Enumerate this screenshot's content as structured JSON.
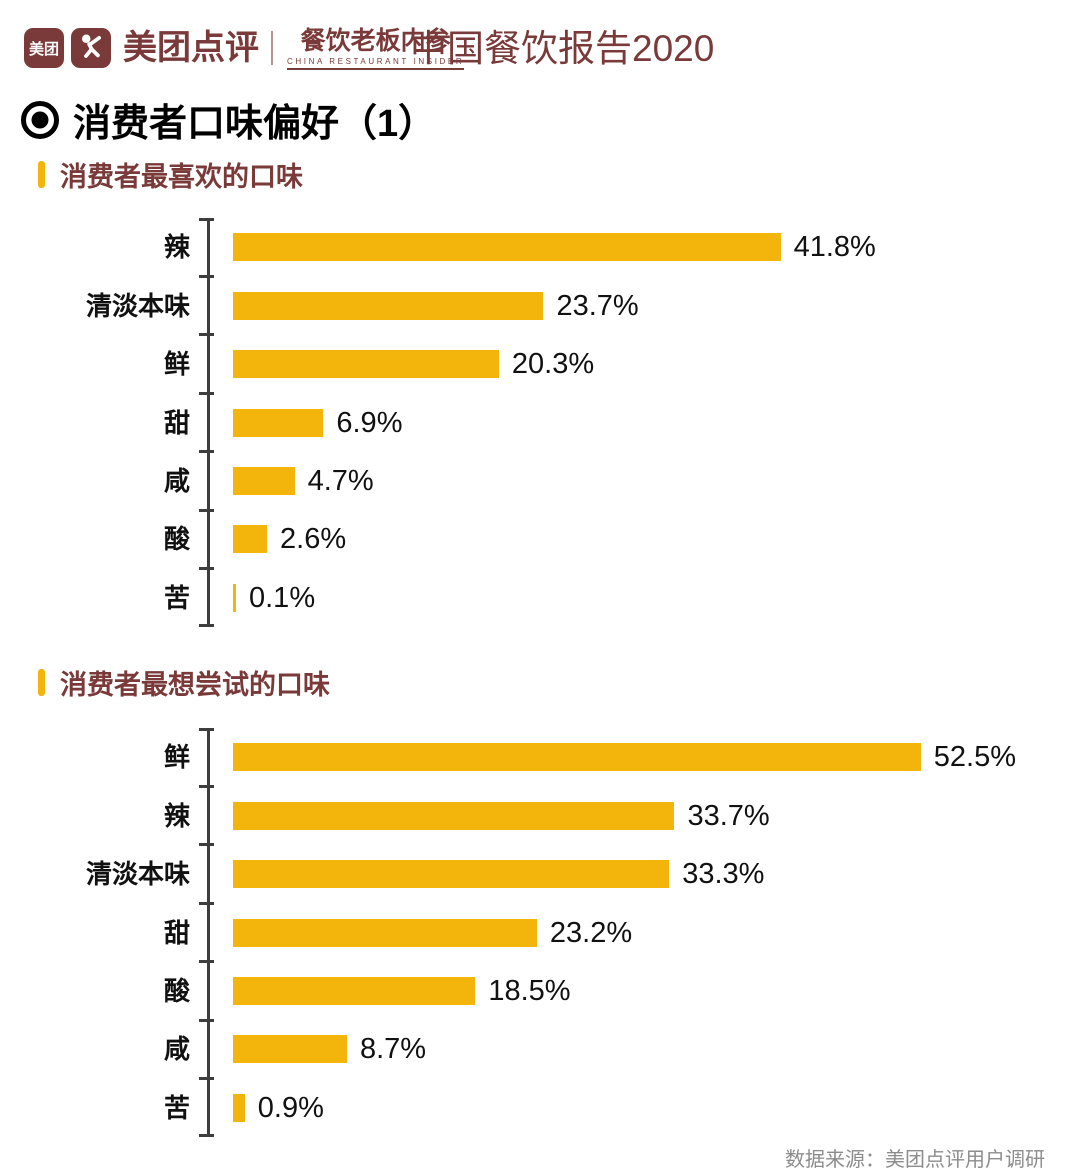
{
  "header": {
    "meituan_badge_label": "美团",
    "brand_name": "美团点评",
    "insider_title": "餐饮老板内参",
    "insider_subtitle": "CHINA RESTAURANT INSIDER",
    "report_title": "中国餐饮报告2020"
  },
  "page_title": "消费者口味偏好（1）",
  "chart_data": [
    {
      "type": "bar",
      "orientation": "horizontal",
      "title": "消费者最喜欢的口味",
      "categories": [
        "辣",
        "清淡本味",
        "鲜",
        "甜",
        "咸",
        "酸",
        "苦"
      ],
      "values": [
        41.8,
        23.7,
        20.3,
        6.9,
        4.7,
        2.6,
        0.1
      ],
      "value_labels": [
        "41.8%",
        "23.7%",
        "20.3%",
        "6.9%",
        "4.7%",
        "2.6%",
        "0.1%"
      ],
      "xlim": [
        0,
        60
      ],
      "grid": false,
      "legend": false,
      "bar_color": "#F3B50B"
    },
    {
      "type": "bar",
      "orientation": "horizontal",
      "title": "消费者最想尝试的口味",
      "categories": [
        "鲜",
        "辣",
        "清淡本味",
        "甜",
        "酸",
        "咸",
        "苦"
      ],
      "values": [
        52.5,
        33.7,
        33.3,
        23.2,
        18.5,
        8.7,
        0.9
      ],
      "value_labels": [
        "52.5%",
        "33.7%",
        "33.3%",
        "23.2%",
        "18.5%",
        "8.7%",
        "0.9%"
      ],
      "xlim": [
        0,
        60
      ],
      "grid": false,
      "legend": false,
      "bar_color": "#F3B50B"
    }
  ],
  "footer": {
    "source_text": "数据来源：美团点评用户调研"
  },
  "colors": {
    "brand_maroon": "#7B3A3A",
    "bar_gold": "#F3B50B",
    "axis": "#3D3D3D",
    "text_black": "#111111",
    "footer_gray": "#8C8C8C"
  }
}
